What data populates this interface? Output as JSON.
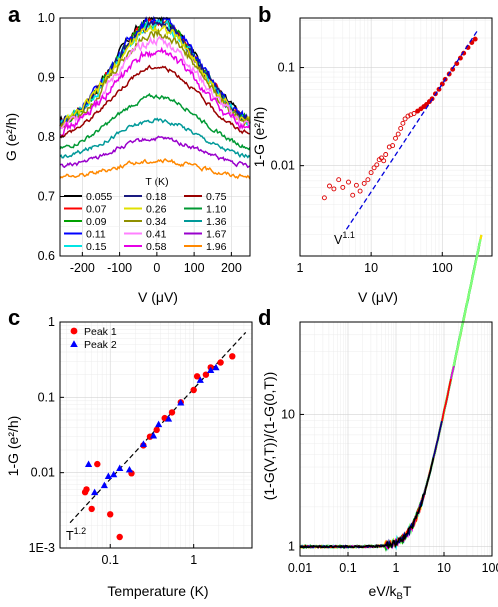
{
  "chart_data": [
    {
      "panel": "a",
      "type": "line",
      "xlabel": "V (μV)",
      "ylabel": "G (e²/h)",
      "xlim": [
        -260,
        250
      ],
      "ylim": [
        0.6,
        1.0
      ],
      "xticks": [
        -200,
        -100,
        0,
        100,
        200
      ],
      "yticks": [
        0.6,
        0.7,
        0.8,
        0.9,
        1.0
      ],
      "legend_title": "T (K)",
      "legend_placement": "bottom",
      "series": [
        {
          "name": "0.055",
          "color": "#000000",
          "peak": 1.0,
          "base": 0.808
        },
        {
          "name": "0.07",
          "color": "#ff0000",
          "peak": 0.995,
          "base": 0.808
        },
        {
          "name": "0.09",
          "color": "#00a000",
          "peak": 0.995,
          "base": 0.805
        },
        {
          "name": "0.11",
          "color": "#0000ff",
          "peak": 0.998,
          "base": 0.808
        },
        {
          "name": "0.15",
          "color": "#00e5e5",
          "peak": 0.99,
          "base": 0.806
        },
        {
          "name": "0.18",
          "color": "#1a1a80",
          "peak": 0.992,
          "base": 0.808
        },
        {
          "name": "0.26",
          "color": "#e0e000",
          "peak": 0.985,
          "base": 0.806
        },
        {
          "name": "0.34",
          "color": "#909000",
          "peak": 0.975,
          "base": 0.805
        },
        {
          "name": "0.41",
          "color": "#ff80ff",
          "peak": 0.962,
          "base": 0.802
        },
        {
          "name": "0.58",
          "color": "#e600e6",
          "peak": 0.942,
          "base": 0.798
        },
        {
          "name": "0.75",
          "color": "#990000",
          "peak": 0.918,
          "base": 0.792
        },
        {
          "name": "1.10",
          "color": "#009933",
          "peak": 0.868,
          "base": 0.772
        },
        {
          "name": "1.36",
          "color": "#009999",
          "peak": 0.828,
          "base": 0.76
        },
        {
          "name": "1.67",
          "color": "#9900cc",
          "peak": 0.797,
          "base": 0.746
        },
        {
          "name": "1.96",
          "color": "#ff8800",
          "peak": 0.76,
          "base": 0.73
        }
      ]
    },
    {
      "panel": "b",
      "type": "scatter",
      "xlabel": "V (μV)",
      "ylabel": "1-G (e²/h)",
      "xscale": "log",
      "yscale": "log",
      "xlim": [
        1,
        500
      ],
      "ylim": [
        0.0012,
        0.32
      ],
      "xticks": [
        1,
        10,
        100
      ],
      "yticks": [
        0.01,
        0.1
      ],
      "fit_label": "V^1.1",
      "fit": {
        "exponent": 1.1,
        "x_range": [
          4.5,
          320
        ],
        "y_at_100": 0.068
      },
      "points": [
        [
          2.2,
          0.0047
        ],
        [
          2.6,
          0.0062
        ],
        [
          3.0,
          0.0058
        ],
        [
          3.5,
          0.0072
        ],
        [
          4.0,
          0.006
        ],
        [
          4.8,
          0.0068
        ],
        [
          5.5,
          0.005
        ],
        [
          6.2,
          0.0063
        ],
        [
          7.0,
          0.0055
        ],
        [
          8.0,
          0.0066
        ],
        [
          9.0,
          0.0072
        ],
        [
          10.0,
          0.0085
        ],
        [
          11.0,
          0.0095
        ],
        [
          12.0,
          0.0102
        ],
        [
          13.0,
          0.0115
        ],
        [
          14.0,
          0.012
        ],
        [
          15.0,
          0.0112
        ],
        [
          16.0,
          0.013
        ],
        [
          18.0,
          0.0155
        ],
        [
          20.0,
          0.016
        ],
        [
          22.0,
          0.019
        ],
        [
          24.0,
          0.021
        ],
        [
          26.0,
          0.024
        ],
        [
          28.0,
          0.027
        ],
        [
          30.0,
          0.03
        ],
        [
          33.0,
          0.032
        ],
        [
          36.0,
          0.033
        ],
        [
          40.0,
          0.034
        ],
        [
          45.0,
          0.036
        ],
        [
          50.0,
          0.038
        ],
        [
          55.0,
          0.04
        ],
        [
          60.0,
          0.042
        ],
        [
          66.0,
          0.045
        ],
        [
          72.0,
          0.048
        ],
        [
          80.0,
          0.054
        ],
        [
          90.0,
          0.06
        ],
        [
          100.0,
          0.068
        ],
        [
          110.0,
          0.076
        ],
        [
          125.0,
          0.086
        ],
        [
          140.0,
          0.096
        ],
        [
          160.0,
          0.11
        ],
        [
          180.0,
          0.125
        ],
        [
          200.0,
          0.14
        ],
        [
          230.0,
          0.16
        ],
        [
          260.0,
          0.18
        ],
        [
          290.0,
          0.195
        ]
      ]
    },
    {
      "panel": "c",
      "type": "scatter",
      "xlabel": "Temperature (K)",
      "ylabel": "1-G (e²/h)",
      "xscale": "log",
      "yscale": "log",
      "xlim": [
        0.025,
        5
      ],
      "ylim": [
        0.001,
        1
      ],
      "xticks": [
        0.1,
        1
      ],
      "ytick_labels": [
        "1E-3",
        "0.01",
        "0.1",
        "1"
      ],
      "fit_label": "T^1.2",
      "fit": {
        "exponent": 1.2,
        "x_range": [
          0.033,
          4.2
        ],
        "y_at_1": 0.13
      },
      "legend_placement": "top-left",
      "series": [
        {
          "name": "Peak 1",
          "marker": "circle",
          "color": "#ff0000",
          "points": [
            [
              0.05,
              0.0055
            ],
            [
              0.052,
              0.006
            ],
            [
              0.06,
              0.0033
            ],
            [
              0.07,
              0.013
            ],
            [
              0.1,
              0.0028
            ],
            [
              0.13,
              0.0014
            ],
            [
              0.18,
              0.0098
            ],
            [
              0.25,
              0.023
            ],
            [
              0.3,
              0.03
            ],
            [
              0.36,
              0.037
            ],
            [
              0.45,
              0.053
            ],
            [
              0.55,
              0.063
            ],
            [
              0.7,
              0.086
            ],
            [
              1.0,
              0.125
            ],
            [
              1.1,
              0.19
            ],
            [
              1.4,
              0.2
            ],
            [
              1.6,
              0.25
            ],
            [
              2.1,
              0.29
            ],
            [
              2.9,
              0.35
            ]
          ]
        },
        {
          "name": "Peak 2",
          "marker": "triangle",
          "color": "#0000ff",
          "points": [
            [
              0.055,
              0.013
            ],
            [
              0.065,
              0.0055
            ],
            [
              0.085,
              0.0068
            ],
            [
              0.095,
              0.009
            ],
            [
              0.11,
              0.0095
            ],
            [
              0.13,
              0.0115
            ],
            [
              0.17,
              0.011
            ],
            [
              0.25,
              0.024
            ],
            [
              0.33,
              0.031
            ],
            [
              0.38,
              0.044
            ],
            [
              0.5,
              0.052
            ],
            [
              0.7,
              0.085
            ],
            [
              1.2,
              0.17
            ],
            [
              1.6,
              0.23
            ],
            [
              1.85,
              0.25
            ]
          ]
        }
      ]
    },
    {
      "panel": "d",
      "type": "line",
      "xlabel": "eV/kBT",
      "ylabel": "(1-G(V,T))/(1-G(0,T))",
      "xscale": "log",
      "yscale": "log",
      "xlim": [
        0.01,
        100
      ],
      "ylim": [
        0.85,
        50
      ],
      "xticks": [
        0.01,
        0.1,
        1,
        10,
        100
      ],
      "yticks": [
        1,
        10
      ],
      "series": [
        {
          "color": "#00e5e5",
          "xmax": 60
        },
        {
          "color": "#ffe000",
          "xmax": 60
        },
        {
          "color": "#00b000",
          "xmax": 55
        },
        {
          "color": "#7fff7f",
          "xmax": 58
        },
        {
          "color": "#e600e6",
          "xmax": 16
        },
        {
          "color": "#ff0000",
          "xmax": 14
        },
        {
          "color": "#000080",
          "xmax": 9
        },
        {
          "color": "#000000",
          "xmax": 6
        }
      ]
    }
  ]
}
